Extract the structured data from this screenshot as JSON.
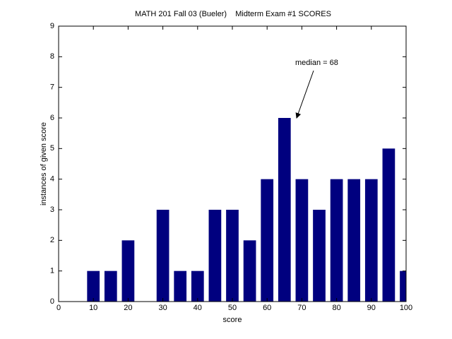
{
  "chart_data": {
    "type": "bar",
    "title": "MATH 201 Fall 03 (Bueler)    Midterm Exam #1 SCORES",
    "xlabel": "score",
    "ylabel": "instances of given score",
    "annotation": "median = 68",
    "x": [
      10,
      15,
      20,
      25,
      30,
      35,
      40,
      45,
      50,
      55,
      60,
      65,
      70,
      75,
      80,
      85,
      90,
      95,
      100
    ],
    "values": [
      1,
      1,
      2,
      0,
      3,
      1,
      1,
      3,
      3,
      2,
      4,
      6,
      4,
      3,
      4,
      4,
      4,
      5,
      1
    ],
    "color": "#00007f",
    "xlim": [
      0,
      100
    ],
    "xticks": [
      0,
      10,
      20,
      30,
      40,
      50,
      60,
      70,
      80,
      90,
      100
    ],
    "ylim": [
      0,
      9
    ],
    "yticks": [
      0,
      1,
      2,
      3,
      4,
      5,
      6,
      7,
      8,
      9
    ],
    "grid": false
  }
}
